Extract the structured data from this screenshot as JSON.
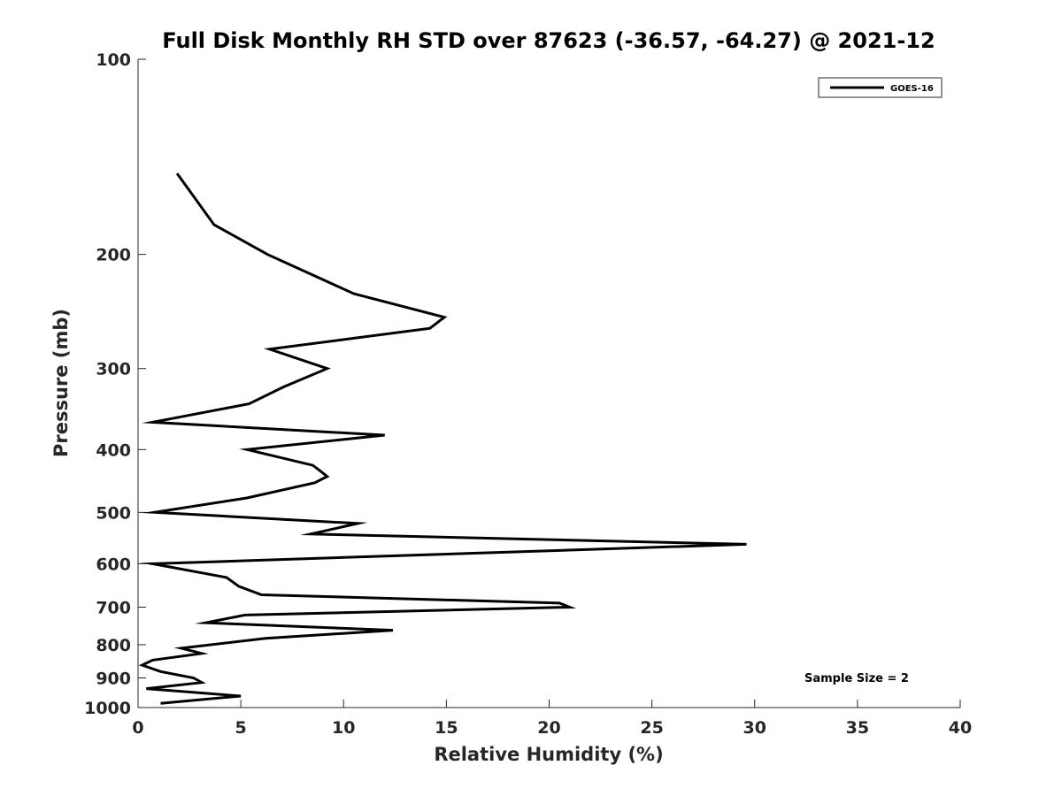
{
  "chart_data": {
    "type": "line",
    "title": "Full Disk Monthly RH STD over 87623 (-36.57, -64.27) @ 2021-12",
    "xlabel": "Relative Humidity (%)",
    "ylabel": "Pressure (mb)",
    "xlim": [
      0,
      40
    ],
    "ylim": [
      100,
      1000
    ],
    "yscale": "log",
    "y_reversed": true,
    "grid": false,
    "x_ticks": [
      0,
      5,
      10,
      15,
      20,
      25,
      30,
      35,
      40
    ],
    "x_tick_labels": [
      "0",
      "5",
      "10",
      "15",
      "20",
      "25",
      "30",
      "35",
      "40"
    ],
    "y_ticks": [
      100,
      200,
      300,
      400,
      500,
      600,
      700,
      800,
      900,
      1000
    ],
    "y_tick_labels": [
      "100",
      "200",
      "300",
      "400",
      "500",
      "600",
      "700",
      "800",
      "900",
      "1000"
    ],
    "legend_position": "top-right",
    "series": [
      {
        "name": "GOES-16",
        "color": "#000000",
        "x": [
          1.9,
          3.7,
          6.3,
          10.5,
          14.9,
          14.2,
          6.4,
          9.2,
          7.1,
          5.4,
          0.7,
          12.0,
          5.3,
          8.5,
          8.8,
          9.2,
          8.6,
          5.3,
          0.8,
          10.7,
          8.4,
          29.6,
          0.7,
          4.3,
          4.9,
          6.0,
          20.5,
          21.0,
          5.2,
          3.3,
          12.4,
          6.2,
          2.1,
          3.1,
          0.7,
          0.2,
          1.1,
          2.7,
          3.1,
          0.4,
          5.0,
          1.1
        ],
        "y": [
          150,
          180,
          200,
          230,
          250,
          260,
          280,
          300,
          320,
          340,
          363,
          380,
          400,
          423,
          430,
          440,
          450,
          475,
          500,
          520,
          540,
          560,
          600,
          630,
          650,
          670,
          690,
          700,
          720,
          740,
          760,
          782,
          810,
          825,
          845,
          860,
          880,
          900,
          915,
          935,
          960,
          985
        ]
      }
    ],
    "annotations": [
      "Sample Size = 2"
    ]
  }
}
